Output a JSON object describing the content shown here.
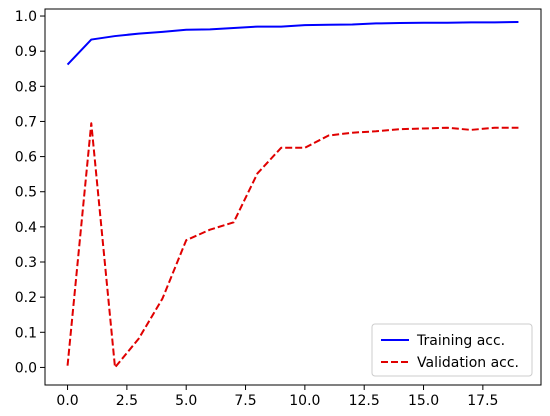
{
  "chart_data": {
    "type": "line",
    "title": "",
    "xlabel": "",
    "ylabel": "",
    "xlim": [
      -0.95,
      19.95
    ],
    "ylim": [
      -0.05,
      1.02
    ],
    "xticks": [
      0.0,
      2.5,
      5.0,
      7.5,
      10.0,
      12.5,
      15.0,
      17.5
    ],
    "xtick_labels": [
      "0.0",
      "2.5",
      "5.0",
      "7.5",
      "10.0",
      "12.5",
      "15.0",
      "17.5"
    ],
    "yticks": [
      0.0,
      0.1,
      0.2,
      0.3,
      0.4,
      0.5,
      0.6,
      0.7,
      0.8,
      0.9,
      1.0
    ],
    "ytick_labels": [
      "0.0",
      "0.1",
      "0.2",
      "0.3",
      "0.4",
      "0.5",
      "0.6",
      "0.7",
      "0.8",
      "0.9",
      "1.0"
    ],
    "grid": false,
    "legend_position": "lower-right",
    "x": [
      0,
      1,
      2,
      3,
      4,
      5,
      6,
      7,
      8,
      9,
      10,
      11,
      12,
      13,
      14,
      15,
      16,
      17,
      18,
      19
    ],
    "series": [
      {
        "name": "Training acc.",
        "color": "#0000ff",
        "style": "solid",
        "values": [
          0.862,
          0.933,
          0.943,
          0.95,
          0.955,
          0.961,
          0.962,
          0.966,
          0.97,
          0.97,
          0.974,
          0.975,
          0.976,
          0.979,
          0.98,
          0.981,
          0.981,
          0.982,
          0.982,
          0.983
        ]
      },
      {
        "name": "Validation acc.",
        "color": "#e00000",
        "style": "dashed",
        "values": [
          0.005,
          0.695,
          0.0,
          0.082,
          0.196,
          0.362,
          0.392,
          0.413,
          0.552,
          0.625,
          0.625,
          0.66,
          0.668,
          0.672,
          0.678,
          0.68,
          0.682,
          0.676,
          0.682,
          0.682
        ]
      }
    ]
  }
}
